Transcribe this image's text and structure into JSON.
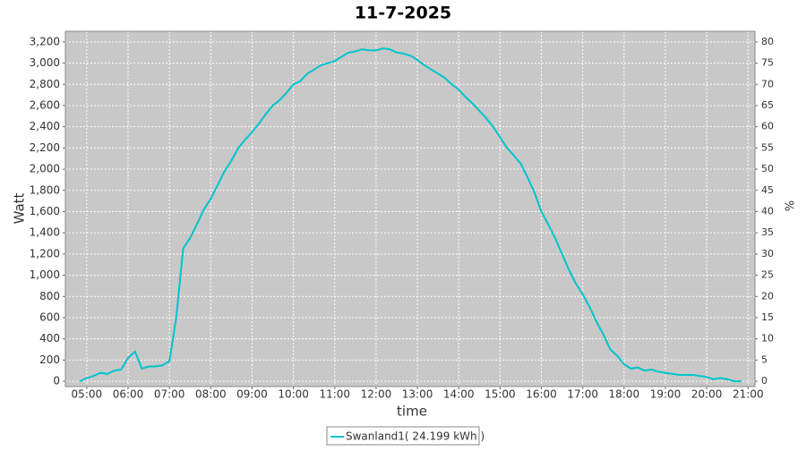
{
  "chart_data": {
    "type": "line",
    "title": "11-7-2025",
    "xlabel": "time",
    "ylabel": "Watt",
    "y2label": "%",
    "x": [
      "04:50",
      "05:00",
      "05:10",
      "05:20",
      "05:30",
      "05:40",
      "05:50",
      "06:00",
      "06:10",
      "06:20",
      "06:30",
      "06:40",
      "06:50",
      "07:00",
      "07:10",
      "07:20",
      "07:30",
      "07:40",
      "07:50",
      "08:00",
      "08:10",
      "08:20",
      "08:30",
      "08:40",
      "08:50",
      "09:00",
      "09:10",
      "09:20",
      "09:30",
      "09:40",
      "09:50",
      "10:00",
      "10:10",
      "10:20",
      "10:30",
      "10:40",
      "10:50",
      "11:00",
      "11:10",
      "11:20",
      "11:30",
      "11:40",
      "11:50",
      "12:00",
      "12:10",
      "12:20",
      "12:30",
      "12:40",
      "12:50",
      "13:00",
      "13:10",
      "13:20",
      "13:30",
      "13:40",
      "13:50",
      "14:00",
      "14:10",
      "14:20",
      "14:30",
      "14:40",
      "14:50",
      "15:00",
      "15:10",
      "15:20",
      "15:30",
      "15:40",
      "15:50",
      "16:00",
      "16:10",
      "16:20",
      "16:30",
      "16:40",
      "16:50",
      "17:00",
      "17:10",
      "17:20",
      "17:30",
      "17:40",
      "17:50",
      "18:00",
      "18:10",
      "18:20",
      "18:30",
      "18:40",
      "18:50",
      "19:00",
      "19:10",
      "19:20",
      "19:30",
      "19:40",
      "19:50",
      "20:00",
      "20:10",
      "20:20",
      "20:30",
      "20:40",
      "20:50"
    ],
    "series": [
      {
        "name": "Swanland1( 24.199 kWh )",
        "color": "#00c4cc",
        "values": [
          0,
          30,
          50,
          80,
          70,
          100,
          110,
          220,
          280,
          120,
          140,
          140,
          150,
          190,
          600,
          1250,
          1350,
          1480,
          1620,
          1720,
          1850,
          1980,
          2080,
          2200,
          2280,
          2350,
          2430,
          2520,
          2600,
          2650,
          2720,
          2800,
          2830,
          2900,
          2940,
          2980,
          3000,
          3020,
          3060,
          3100,
          3110,
          3130,
          3120,
          3120,
          3140,
          3130,
          3100,
          3090,
          3070,
          3030,
          2980,
          2940,
          2900,
          2860,
          2800,
          2750,
          2680,
          2620,
          2550,
          2480,
          2400,
          2300,
          2200,
          2130,
          2050,
          1920,
          1780,
          1600,
          1480,
          1350,
          1200,
          1050,
          920,
          820,
          700,
          560,
          440,
          300,
          240,
          160,
          120,
          130,
          100,
          110,
          90,
          80,
          70,
          60,
          60,
          60,
          50,
          40,
          20,
          30,
          20,
          0,
          0
        ]
      }
    ],
    "xlim": [
      "04:29",
      "21:10"
    ],
    "xticks": [
      "05:00",
      "06:00",
      "07:00",
      "08:00",
      "09:00",
      "10:00",
      "11:00",
      "12:00",
      "13:00",
      "14:00",
      "15:00",
      "16:00",
      "17:00",
      "18:00",
      "19:00",
      "20:00",
      "21:00"
    ],
    "ylim": [
      -50,
      3300
    ],
    "yticks": [
      0,
      200,
      400,
      600,
      800,
      {
        "value": 1000,
        "label": "1,000"
      },
      {
        "value": 1200,
        "label": "1,200"
      },
      {
        "value": 1400,
        "label": "1,400"
      },
      {
        "value": 1600,
        "label": "1,600"
      },
      {
        "value": 1800,
        "label": "1,800"
      },
      {
        "value": 2000,
        "label": "2,000"
      },
      {
        "value": 2200,
        "label": "2,200"
      },
      {
        "value": 2400,
        "label": "2,400"
      },
      {
        "value": 2600,
        "label": "2,600"
      },
      {
        "value": 2800,
        "label": "2,800"
      },
      {
        "value": 3000,
        "label": "3,000"
      },
      {
        "value": 3200,
        "label": "3,200"
      }
    ],
    "y2lim": [
      -1.25,
      82.5
    ],
    "y2ticks": [
      0,
      5,
      10,
      15,
      20,
      25,
      30,
      35,
      40,
      45,
      50,
      55,
      60,
      65,
      70,
      75,
      80
    ],
    "grid": true,
    "legend": "bottom"
  }
}
